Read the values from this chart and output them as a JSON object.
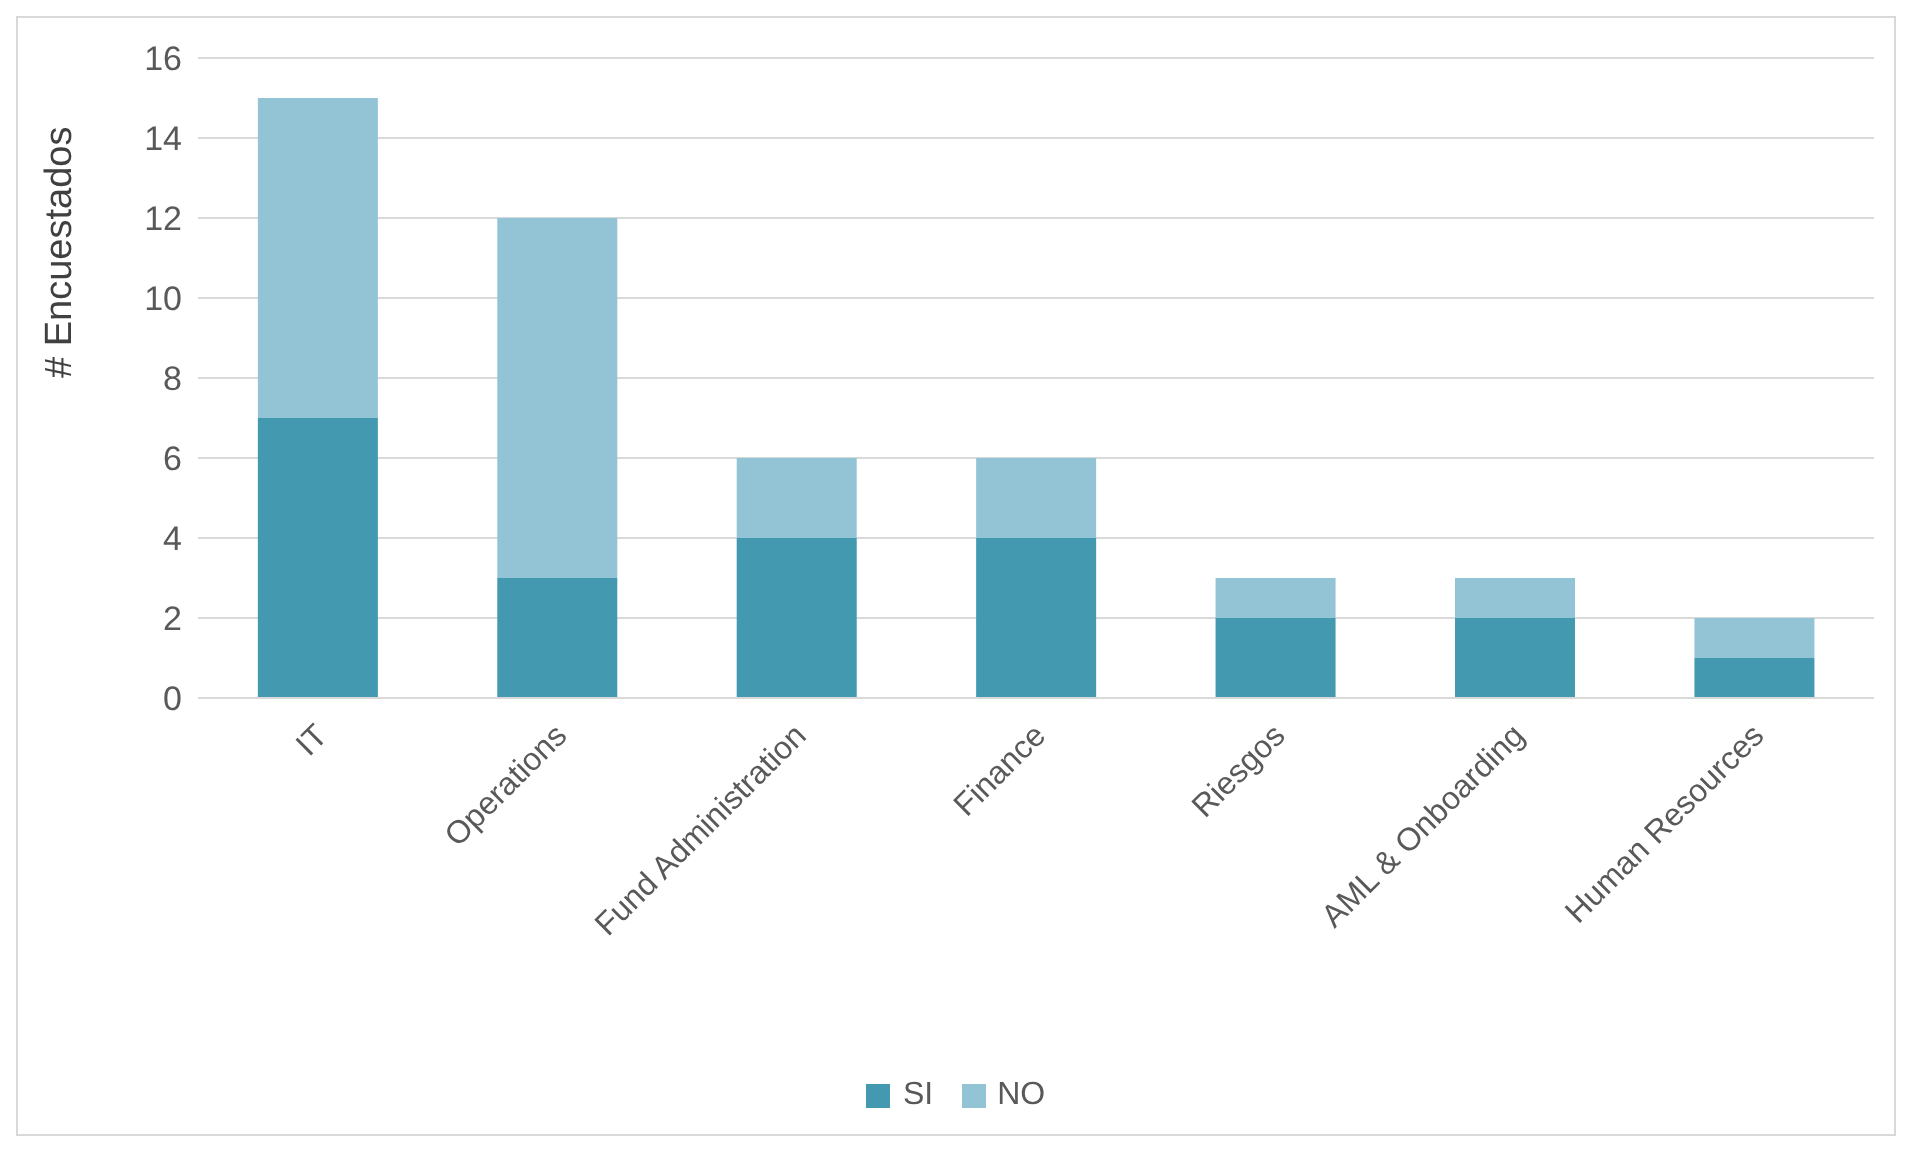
{
  "chart_data": {
    "type": "bar",
    "stacked": true,
    "ylabel": "# Encuestados",
    "categories": [
      "IT",
      "Operations",
      "Fund Administration",
      "Finance",
      "Riesgos",
      "AML & Onboarding",
      "Human Resources"
    ],
    "series": [
      {
        "name": "SI",
        "color": "#4299b0",
        "values": [
          7,
          3,
          4,
          4,
          2,
          2,
          1
        ]
      },
      {
        "name": "NO",
        "color": "#92c4d6",
        "values": [
          8,
          9,
          2,
          2,
          1,
          1,
          1
        ]
      }
    ],
    "ylim": [
      0,
      16
    ],
    "yticks": [
      0,
      2,
      4,
      6,
      8,
      10,
      12,
      14,
      16
    ],
    "grid": "y",
    "legend": "bottom"
  }
}
